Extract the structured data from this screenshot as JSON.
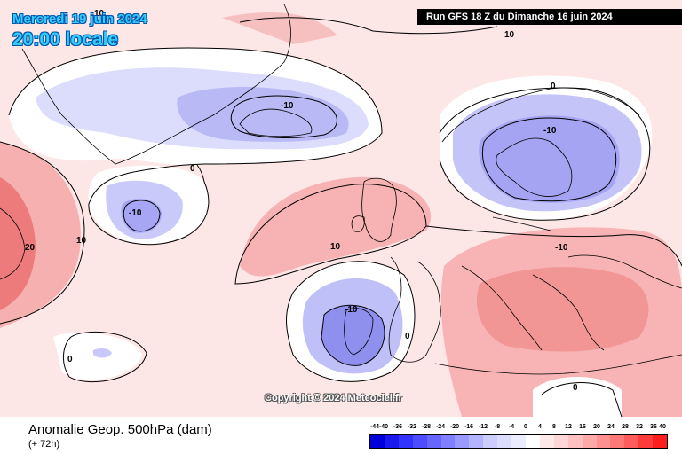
{
  "header": {
    "valid_date": "Mercredi 19 juin 2024",
    "valid_time": "20:00 locale",
    "run_info": "Run GFS 18 Z du Dimanche 16 juin 2024"
  },
  "footer": {
    "parameter": "Anomalie Geop. 500hPa (dam)",
    "forecast_range": "(+ 72h)",
    "copyright": "Copyright © 2024 Meteociel.fr"
  },
  "legend": {
    "labels": [
      "-44",
      "-40",
      "-36",
      "-32",
      "-28",
      "-24",
      "-20",
      "-16",
      "-12",
      "-8",
      "-4",
      "0",
      "4",
      "8",
      "12",
      "16",
      "20",
      "24",
      "28",
      "32",
      "36",
      "40"
    ],
    "colors": [
      "#0000dd",
      "#1a1aee",
      "#3333ff",
      "#4d4dff",
      "#6666ff",
      "#7f7fff",
      "#9999ff",
      "#b3b3ff",
      "#ccccff",
      "#dcdcff",
      "#ececff",
      "#ffffff",
      "#ffe8e8",
      "#ffd6d6",
      "#ffc0c0",
      "#ffa8a8",
      "#ff9090",
      "#ff7878",
      "#ff5c5c",
      "#ff3c3c",
      "#ff1e1e"
    ]
  },
  "contour_labels": {
    "l1": "10",
    "l2": "10",
    "l3": "-10",
    "l4": "0",
    "l5": "-10",
    "l6": "10",
    "l7": "20",
    "l8": "0",
    "l9": "-10",
    "l10": "10",
    "l11": "-10",
    "l12": "0",
    "l13": "-10",
    "l14": "0",
    "l15": "0"
  },
  "colors": {
    "positive_light": "#fde6e6",
    "positive_mid": "#f7a8a8",
    "positive_strong": "#ee7373",
    "negative_light": "#dedeff",
    "negative_mid": "#aaaaf5",
    "negative_strong": "#8a8aee"
  }
}
